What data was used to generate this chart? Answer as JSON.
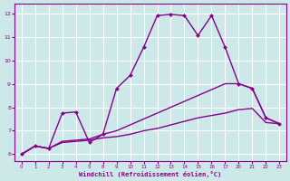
{
  "xlabel": "Windchill (Refroidissement éolien,°C)",
  "bg_color": "#cce8e8",
  "line_color": "#880088",
  "grid_color": "#ffffff",
  "tick_positions": [
    0,
    1,
    2,
    3,
    4,
    5,
    8,
    9,
    10,
    11,
    12,
    13,
    14,
    15,
    16,
    17,
    20,
    21,
    22,
    23
  ],
  "yticks": [
    6,
    7,
    8,
    9,
    10,
    11,
    12
  ],
  "ylim": [
    5.7,
    12.4
  ],
  "curves": [
    {
      "x": [
        0,
        1,
        2,
        3,
        4,
        5,
        8,
        9,
        10,
        11,
        12,
        13,
        14,
        15,
        16,
        17,
        20,
        21,
        22,
        23
      ],
      "y": [
        6.0,
        6.35,
        6.25,
        6.5,
        6.55,
        6.6,
        6.7,
        6.75,
        6.85,
        7.0,
        7.1,
        7.25,
        7.4,
        7.55,
        7.65,
        7.75,
        7.9,
        7.95,
        7.35,
        7.3
      ],
      "marker": false,
      "lw": 1.0
    },
    {
      "x": [
        0,
        1,
        2,
        3,
        4,
        5,
        8,
        9,
        10,
        11,
        12,
        13,
        14,
        15,
        16,
        17,
        20,
        21,
        22,
        23
      ],
      "y": [
        6.0,
        6.35,
        6.25,
        6.55,
        6.6,
        6.65,
        6.85,
        7.0,
        7.25,
        7.5,
        7.75,
        8.0,
        8.25,
        8.5,
        8.75,
        9.0,
        9.0,
        8.8,
        7.55,
        7.3
      ],
      "marker": false,
      "lw": 1.0
    },
    {
      "x": [
        0,
        1,
        2,
        3,
        4,
        5,
        8,
        9,
        10,
        11,
        12,
        13,
        14,
        15,
        16,
        17,
        20,
        21,
        22,
        23
      ],
      "y": [
        6.0,
        6.35,
        6.25,
        7.75,
        7.8,
        6.5,
        6.85,
        8.8,
        9.35,
        10.55,
        11.9,
        11.95,
        11.9,
        11.05,
        11.9,
        10.55,
        9.0,
        8.8,
        7.55,
        7.3
      ],
      "marker": true,
      "lw": 1.0
    }
  ]
}
